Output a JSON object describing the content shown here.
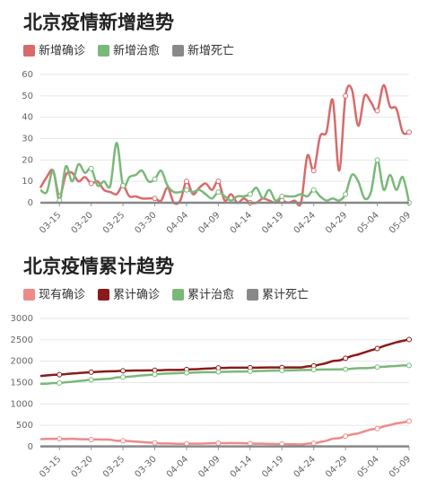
{
  "chart_data": [
    {
      "type": "line",
      "title": "北京疫情新增趋势",
      "categories": [
        null,
        null,
        null,
        "03-15",
        null,
        null,
        null,
        null,
        "03-20",
        null,
        null,
        null,
        null,
        "03-25",
        null,
        null,
        null,
        null,
        "03-30",
        null,
        null,
        null,
        null,
        "04-04",
        null,
        null,
        null,
        null,
        "04-09",
        null,
        null,
        null,
        null,
        "04-14",
        null,
        null,
        null,
        null,
        "04-19",
        null,
        null,
        null,
        null,
        "04-24",
        null,
        null,
        null,
        null,
        "04-29",
        null,
        null,
        null,
        null,
        "05-04",
        null,
        null,
        null,
        null,
        "05-09"
      ],
      "series": [
        {
          "name": "新增确诊",
          "color": "#d96a6a",
          "values": [
            7,
            12,
            15,
            3,
            13,
            14,
            10,
            12,
            9,
            10,
            6,
            5,
            4,
            8,
            3,
            3,
            2,
            2,
            2,
            1,
            7,
            0,
            1,
            10,
            4,
            7,
            9,
            6,
            10,
            1,
            4,
            0,
            2,
            0,
            0,
            2,
            1,
            0,
            1,
            0,
            1,
            0,
            22,
            15,
            31,
            33,
            48,
            15,
            50,
            53,
            36,
            50,
            47,
            43,
            55,
            45,
            44,
            33,
            33
          ]
        },
        {
          "name": "新增治愈",
          "color": "#7ab87a",
          "values": [
            6,
            5,
            15,
            1,
            17,
            10,
            18,
            14,
            16,
            8,
            10,
            8,
            28,
            8,
            12,
            13,
            15,
            10,
            11,
            15,
            8,
            5,
            5,
            6,
            5,
            6,
            4,
            2,
            5,
            3,
            1,
            3,
            3,
            4,
            7,
            2,
            6,
            1,
            3,
            3,
            3,
            4,
            3,
            6,
            3,
            1,
            2,
            1,
            4,
            13,
            10,
            2,
            5,
            20,
            6,
            13,
            6,
            12,
            0
          ]
        },
        {
          "name": "新增死亡",
          "color": "#888888",
          "values": [
            0,
            0,
            0,
            0,
            0,
            0,
            0,
            0,
            0,
            0,
            0,
            0,
            0,
            0,
            0,
            0,
            0,
            0,
            0,
            0,
            0,
            0,
            0,
            0,
            0,
            0,
            0,
            0,
            0,
            0,
            0,
            0,
            0,
            0,
            0,
            0,
            0,
            0,
            0,
            0,
            0,
            0,
            0,
            0,
            0,
            0,
            0,
            0,
            0,
            0,
            0,
            0,
            0,
            0,
            0,
            0,
            0,
            0,
            0
          ]
        }
      ],
      "ylim": [
        0,
        60
      ],
      "yticks": [
        0,
        10,
        20,
        30,
        40,
        50,
        60
      ],
      "grid": true
    },
    {
      "type": "line",
      "title": "北京疫情累计趋势",
      "categories": [
        null,
        null,
        null,
        "03-15",
        null,
        null,
        null,
        null,
        "03-20",
        null,
        null,
        null,
        null,
        "03-25",
        null,
        null,
        null,
        null,
        "03-30",
        null,
        null,
        null,
        null,
        "04-04",
        null,
        null,
        null,
        null,
        "04-09",
        null,
        null,
        null,
        null,
        "04-14",
        null,
        null,
        null,
        null,
        "04-19",
        null,
        null,
        null,
        null,
        "04-24",
        null,
        null,
        null,
        null,
        "04-29",
        null,
        null,
        null,
        null,
        "05-04",
        null,
        null,
        null,
        null,
        "05-09"
      ],
      "series": [
        {
          "name": "现有确诊",
          "color": "#ee8a8a",
          "values": [
            177,
            184,
            184,
            186,
            182,
            186,
            178,
            176,
            169,
            171,
            167,
            164,
            140,
            140,
            131,
            121,
            108,
            100,
            91,
            77,
            76,
            71,
            67,
            71,
            70,
            71,
            76,
            80,
            85,
            83,
            86,
            83,
            82,
            77,
            70,
            70,
            65,
            64,
            62,
            59,
            57,
            53,
            72,
            81,
            109,
            141,
            187,
            201,
            247,
            287,
            313,
            361,
            403,
            426,
            475,
            507,
            545,
            566,
            599
          ]
        },
        {
          "name": "累计确诊",
          "color": "#8b1a1a",
          "values": [
            1655,
            1667,
            1682,
            1685,
            1698,
            1712,
            1722,
            1734,
            1743,
            1753,
            1759,
            1764,
            1768,
            1776,
            1779,
            1782,
            1784,
            1786,
            1788,
            1789,
            1796,
            1796,
            1797,
            1807,
            1811,
            1818,
            1827,
            1833,
            1843,
            1844,
            1848,
            1848,
            1850,
            1850,
            1850,
            1852,
            1853,
            1853,
            1854,
            1854,
            1855,
            1855,
            1877,
            1892,
            1923,
            1956,
            2004,
            2019,
            2069,
            2122,
            2158,
            2208,
            2255,
            2298,
            2353,
            2398,
            2442,
            2475,
            2508
          ]
        },
        {
          "name": "累计治愈",
          "color": "#7ab87a",
          "values": [
            1470,
            1475,
            1490,
            1491,
            1508,
            1518,
            1536,
            1550,
            1566,
            1574,
            1584,
            1592,
            1620,
            1628,
            1640,
            1653,
            1668,
            1678,
            1689,
            1704,
            1712,
            1717,
            1722,
            1728,
            1733,
            1739,
            1743,
            1745,
            1750,
            1753,
            1754,
            1757,
            1760,
            1764,
            1771,
            1773,
            1779,
            1780,
            1783,
            1786,
            1789,
            1793,
            1796,
            1802,
            1805,
            1806,
            1808,
            1809,
            1813,
            1826,
            1836,
            1838,
            1843,
            1863,
            1869,
            1882,
            1888,
            1900,
            1900
          ]
        },
        {
          "name": "累计死亡",
          "color": "#888888",
          "values": [
            8,
            8,
            8,
            8,
            8,
            8,
            8,
            8,
            8,
            8,
            8,
            8,
            8,
            8,
            8,
            8,
            8,
            8,
            8,
            8,
            8,
            8,
            8,
            8,
            8,
            8,
            8,
            8,
            8,
            8,
            8,
            8,
            8,
            9,
            9,
            9,
            9,
            9,
            9,
            9,
            9,
            9,
            9,
            9,
            9,
            9,
            9,
            9,
            9,
            9,
            9,
            9,
            9,
            9,
            9,
            9,
            9,
            9,
            9
          ]
        }
      ],
      "ylim": [
        0,
        3000
      ],
      "yticks": [
        0,
        500,
        1000,
        1500,
        2000,
        2500,
        3000
      ],
      "grid": true
    }
  ]
}
